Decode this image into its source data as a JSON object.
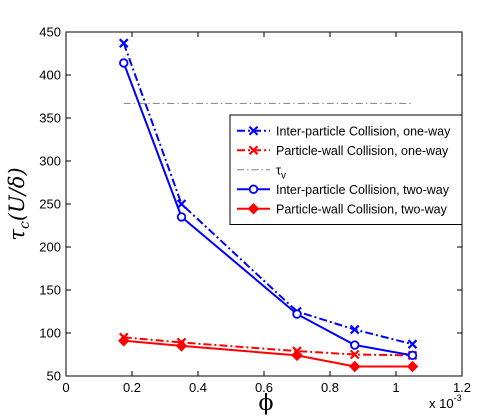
{
  "chart_data": {
    "type": "line",
    "xlabel": "ϕ",
    "ylabel": "τc(U/δ)",
    "x_multiplier_label": "x 10",
    "x_multiplier_exponent": "-3",
    "xlim": [
      0,
      0.0012
    ],
    "ylim": [
      50,
      450
    ],
    "x_ticks": [
      0,
      0.0002,
      0.0004,
      0.0006,
      0.0008,
      0.001,
      0.0012
    ],
    "x_tick_labels": [
      "0",
      "0.2",
      "0.4",
      "0.6",
      "0.8",
      "1",
      "1.2"
    ],
    "y_ticks": [
      50,
      100,
      150,
      200,
      250,
      300,
      350,
      400,
      450
    ],
    "y_tick_labels": [
      "50",
      "100",
      "150",
      "200",
      "250",
      "300",
      "350",
      "400",
      "450"
    ],
    "grid": false,
    "legend_position": "right",
    "series": [
      {
        "name": "Inter-particle Collision, one-way",
        "color": "#0000ff",
        "line_style": "dash-dot",
        "marker": "x",
        "x": [
          0.000175,
          0.00035,
          0.0007,
          0.000875,
          0.00105
        ],
        "y": [
          437,
          250,
          125,
          104,
          87
        ]
      },
      {
        "name": "Particle-wall Collision, one-way",
        "color": "#ff0000",
        "line_style": "dash-dot",
        "marker": "x",
        "x": [
          0.000175,
          0.00035,
          0.0007,
          0.000875,
          0.00105
        ],
        "y": [
          95,
          89,
          79,
          75,
          74
        ]
      },
      {
        "name": "τv",
        "color": "#808080",
        "line_style": "dash-dot",
        "marker": "none",
        "x": [
          0.000175,
          0.00105
        ],
        "y": [
          367,
          367
        ]
      },
      {
        "name": "Inter-particle Collision, two-way",
        "color": "#0000ff",
        "line_style": "solid",
        "marker": "circle",
        "x": [
          0.000175,
          0.00035,
          0.0007,
          0.000875,
          0.00105
        ],
        "y": [
          414,
          235,
          122,
          86,
          74
        ]
      },
      {
        "name": "Particle-wall Collision, two-way",
        "color": "#ff0000",
        "line_style": "solid",
        "marker": "diamond",
        "x": [
          0.000175,
          0.00035,
          0.0007,
          0.000875,
          0.00105
        ],
        "y": [
          91,
          85,
          74,
          61,
          61
        ]
      }
    ]
  }
}
